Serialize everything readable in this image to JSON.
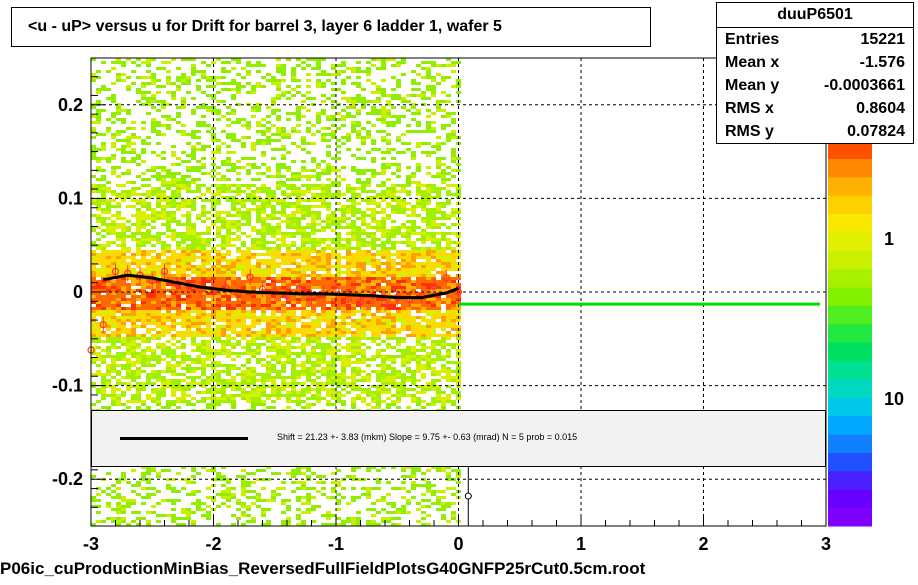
{
  "title": "<u - uP>       versus   u for Drift for barrel 3, layer 6 ladder 1, wafer 5",
  "stats": {
    "name": "duuP6501",
    "rows": [
      {
        "key": "Entries",
        "value": "15221"
      },
      {
        "key": "Mean x",
        "value": "-1.576"
      },
      {
        "key": "Mean y",
        "value": "-0.0003661"
      },
      {
        "key": "RMS x",
        "value": "0.8604"
      },
      {
        "key": "RMS y",
        "value": "0.07824"
      }
    ]
  },
  "fit": {
    "text": "Shift =    21.23 +- 3.83 (mkm) Slope =    9.75 +- 0.63 (mrad)  N = 5 prob = 0.015"
  },
  "footer": "P06ic_cuProductionMinBias_ReversedFullFieldPlotsG40GNFP25rCut0.5cm.root",
  "palette_labels": [
    "1",
    "10"
  ],
  "colors": {
    "profile_points": "#ff3333",
    "fit_curve": "#000000",
    "green_line": "#00dd00",
    "frame": "#000000"
  },
  "chart_data": {
    "type": "heatmap",
    "title": "<u - uP>       versus   u for Drift for barrel 3, layer 6 ladder 1, wafer 5",
    "xlim": [
      -3,
      3
    ],
    "ylim": [
      -0.25,
      0.25
    ],
    "x_ticks": [
      {
        "v": -3,
        "label": "-3"
      },
      {
        "v": -2,
        "label": "-2"
      },
      {
        "v": -1,
        "label": "-1"
      },
      {
        "v": 0,
        "label": "0"
      },
      {
        "v": 1,
        "label": "1"
      },
      {
        "v": 2,
        "label": "2"
      },
      {
        "v": 3,
        "label": "3"
      }
    ],
    "y_ticks": [
      {
        "v": -0.2,
        "label": "-0.2"
      },
      {
        "v": -0.1,
        "label": "-0.1"
      },
      {
        "v": 0,
        "label": "0"
      },
      {
        "v": 0.1,
        "label": "0.1"
      },
      {
        "v": 0.2,
        "label": "0.2"
      }
    ],
    "grid": true,
    "data_x_range": [
      -3,
      0
    ],
    "profile": {
      "x": [
        -3.0,
        -2.9,
        -2.8,
        -2.7,
        -2.6,
        -2.5,
        -2.4,
        -2.3,
        -2.2,
        -2.1,
        -2.0,
        -1.9,
        -1.8,
        -1.7,
        -1.6,
        -1.5,
        -1.4,
        -1.3,
        -1.2,
        -1.1,
        -1.0,
        -0.9,
        -0.8,
        -0.7,
        -0.6,
        -0.5,
        -0.4,
        -0.3,
        -0.2,
        -0.1,
        0.0
      ],
      "y": [
        -0.062,
        -0.035,
        0.022,
        0.02,
        0.018,
        0.012,
        0.022,
        0.008,
        0.006,
        0.003,
        0.0,
        0.005,
        -0.002,
        0.016,
        0.003,
        0.0,
        -0.004,
        0.004,
        -0.006,
        -0.002,
        0.002,
        -0.008,
        -0.01,
        -0.004,
        -0.012,
        -0.006,
        -0.008,
        -0.004,
        0.006,
        0.015,
        0.0
      ]
    },
    "fit_curve": {
      "x": [
        -2.9,
        -2.7,
        -2.5,
        -2.3,
        -2.1,
        -1.9,
        -1.7,
        -1.5,
        -1.3,
        -1.1,
        -0.9,
        -0.7,
        -0.5,
        -0.3,
        -0.1,
        0.0
      ],
      "y": [
        0.013,
        0.018,
        0.015,
        0.01,
        0.005,
        0.002,
        0.0,
        -0.001,
        -0.002,
        -0.002,
        -0.003,
        -0.004,
        -0.006,
        -0.006,
        -0.001,
        0.004
      ]
    },
    "horizontal_line": {
      "y": -0.013,
      "x": [
        0.0,
        2.95
      ]
    },
    "outlier_point": {
      "x": 0.08,
      "y": -0.218
    }
  }
}
